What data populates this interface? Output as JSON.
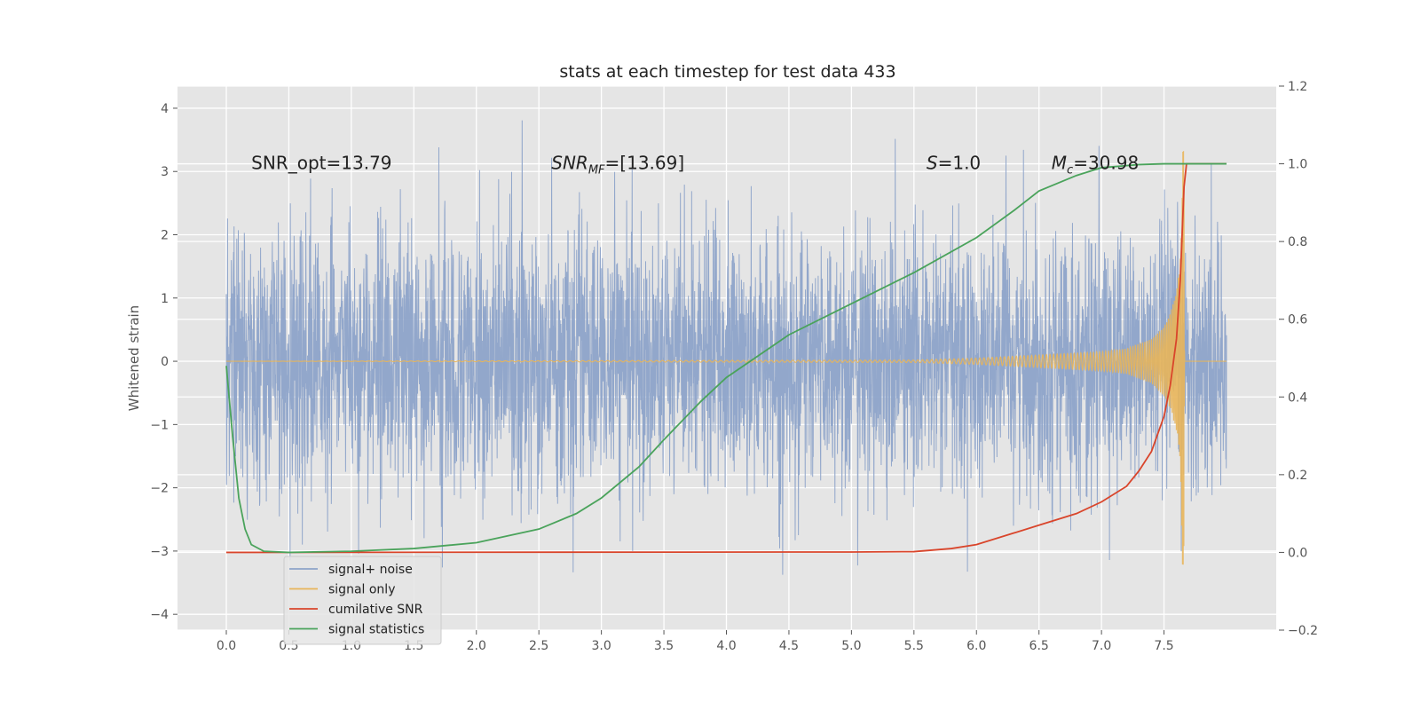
{
  "chart_data": {
    "type": "line",
    "title": "stats at each timestep for test data 433",
    "ylabel": "Whitened strain",
    "xlim": [
      -0.36,
      8.42
    ],
    "xticks": [
      "0.0",
      "0.5",
      "1.0",
      "1.5",
      "2.0",
      "2.5",
      "3.0",
      "3.5",
      "4.0",
      "4.5",
      "5.0",
      "5.5",
      "6.0",
      "6.5",
      "7.0",
      "7.5"
    ],
    "ylim": [
      -4.25,
      4.35
    ],
    "yticks": [
      "4",
      "3",
      "2",
      "1",
      "0",
      "−1",
      "−2",
      "−3",
      "−4"
    ],
    "y2lim": [
      -0.2,
      1.2
    ],
    "y2ticks": [
      "1.2",
      "1.0",
      "0.8",
      "0.6",
      "0.4",
      "0.2",
      "0.0",
      "−0.2"
    ],
    "grid": true,
    "legend_position": "lower-left",
    "annotations": [
      {
        "text": "SNR_opt=13.79",
        "x": 0.2,
        "y": 3.15
      },
      {
        "text": "SNR_MF=[13.69]",
        "x": 2.6,
        "y": 3.15
      },
      {
        "text": "S=1.0",
        "x": 5.6,
        "y": 3.15
      },
      {
        "text": "M_c=30.98",
        "x": 6.6,
        "y": 3.15
      }
    ],
    "series": [
      {
        "name": "signal+ noise",
        "axis": "left",
        "color": "#8da3c9",
        "description_points": {
          "x_range": [
            0.0,
            8.0
          ],
          "approx_amplitude_std": 1.0,
          "peak_max": 4.0,
          "peak_min": -3.85
        }
      },
      {
        "name": "signal only",
        "axis": "left",
        "color": "#e8b55a",
        "x": [
          0.0,
          5.5,
          6.0,
          6.5,
          7.0,
          7.2,
          7.4,
          7.5,
          7.55,
          7.6,
          7.63,
          7.65,
          7.66,
          7.67,
          8.0
        ],
        "envelope": [
          0.0,
          0.02,
          0.05,
          0.1,
          0.15,
          0.2,
          0.35,
          0.55,
          0.75,
          1.1,
          1.6,
          3.4,
          3.3,
          0.0,
          0.0
        ]
      },
      {
        "name": "cumilative SNR",
        "axis": "right",
        "color": "#d9452b",
        "x": [
          0.0,
          5.0,
          5.5,
          5.8,
          6.0,
          6.3,
          6.5,
          6.8,
          7.0,
          7.2,
          7.3,
          7.4,
          7.5,
          7.55,
          7.6,
          7.63,
          7.66,
          7.68,
          8.0
        ],
        "y": [
          0.0,
          0.001,
          0.002,
          0.01,
          0.02,
          0.05,
          0.07,
          0.1,
          0.13,
          0.17,
          0.21,
          0.26,
          0.35,
          0.43,
          0.55,
          0.7,
          0.94,
          1.0,
          1.0
        ]
      },
      {
        "name": "signal statistics",
        "axis": "right",
        "color": "#4aa35b",
        "x": [
          0.0,
          0.05,
          0.1,
          0.15,
          0.2,
          0.3,
          0.5,
          1.0,
          1.5,
          2.0,
          2.5,
          2.8,
          3.0,
          3.3,
          3.5,
          3.8,
          4.0,
          4.5,
          5.0,
          5.5,
          6.0,
          6.3,
          6.5,
          6.8,
          7.0,
          7.3,
          7.5,
          7.8,
          8.0
        ],
        "y": [
          0.48,
          0.3,
          0.14,
          0.06,
          0.02,
          0.003,
          0.0,
          0.003,
          0.01,
          0.025,
          0.06,
          0.1,
          0.14,
          0.22,
          0.29,
          0.39,
          0.45,
          0.56,
          0.64,
          0.72,
          0.81,
          0.88,
          0.93,
          0.97,
          0.99,
          0.998,
          1.0,
          1.0,
          1.0
        ]
      }
    ]
  }
}
